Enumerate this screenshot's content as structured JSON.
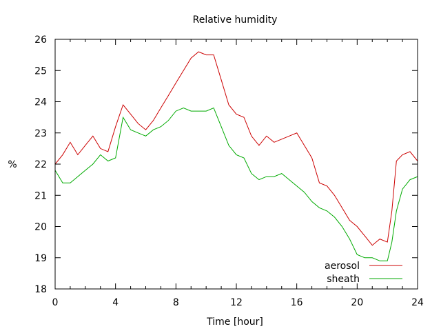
{
  "chart_data": {
    "type": "line",
    "title": "Relative humidity",
    "xlabel": "Time [hour]",
    "ylabel": "%",
    "xlim": [
      0,
      24
    ],
    "ylim": [
      18,
      26
    ],
    "xticks": [
      0,
      4,
      8,
      12,
      16,
      20,
      24
    ],
    "yticks": [
      18,
      19,
      20,
      21,
      22,
      23,
      24,
      25,
      26
    ],
    "grid": false,
    "legend_position": "bottom-right",
    "series": [
      {
        "name": "aerosol",
        "color": "#cc0000",
        "x": [
          0,
          0.5,
          1,
          1.5,
          2,
          2.5,
          3,
          3.5,
          4,
          4.5,
          5,
          5.5,
          6,
          6.5,
          7,
          7.5,
          8,
          8.5,
          9,
          9.5,
          10,
          10.5,
          11,
          11.5,
          12,
          12.5,
          13,
          13.5,
          14,
          14.5,
          15,
          15.5,
          16,
          16.5,
          17,
          17.5,
          18,
          18.5,
          19,
          19.5,
          20,
          20.5,
          21,
          21.5,
          22,
          22.3,
          22.6,
          23,
          23.5,
          24
        ],
        "y": [
          22.0,
          22.3,
          22.7,
          22.3,
          22.6,
          22.9,
          22.5,
          22.4,
          23.2,
          23.9,
          23.6,
          23.3,
          23.1,
          23.4,
          23.8,
          24.2,
          24.6,
          25.0,
          25.4,
          25.6,
          25.5,
          25.5,
          24.7,
          23.9,
          23.6,
          23.5,
          22.9,
          22.6,
          22.9,
          22.7,
          22.8,
          22.9,
          23.0,
          22.6,
          22.2,
          21.4,
          21.3,
          21.0,
          20.6,
          20.2,
          20.0,
          19.7,
          19.4,
          19.6,
          19.5,
          20.5,
          22.1,
          22.3,
          22.4,
          22.1
        ]
      },
      {
        "name": "sheath",
        "color": "#00aa00",
        "x": [
          0,
          0.5,
          1,
          1.5,
          2,
          2.5,
          3,
          3.5,
          4,
          4.5,
          5,
          5.5,
          6,
          6.5,
          7,
          7.5,
          8,
          8.5,
          9,
          9.5,
          10,
          10.5,
          11,
          11.5,
          12,
          12.5,
          13,
          13.5,
          14,
          14.5,
          15,
          15.5,
          16,
          16.5,
          17,
          17.5,
          18,
          18.5,
          19,
          19.5,
          20,
          20.5,
          21,
          21.5,
          22,
          22.3,
          22.6,
          23,
          23.5,
          24
        ],
        "y": [
          21.8,
          21.4,
          21.4,
          21.6,
          21.8,
          22.0,
          22.3,
          22.1,
          22.2,
          23.5,
          23.1,
          23.0,
          22.9,
          23.1,
          23.2,
          23.4,
          23.7,
          23.8,
          23.7,
          23.7,
          23.7,
          23.8,
          23.2,
          22.6,
          22.3,
          22.2,
          21.7,
          21.5,
          21.6,
          21.6,
          21.7,
          21.5,
          21.3,
          21.1,
          20.8,
          20.6,
          20.5,
          20.3,
          20.0,
          19.6,
          19.1,
          19.0,
          19.0,
          18.9,
          18.9,
          19.5,
          20.5,
          21.2,
          21.5,
          21.6
        ]
      }
    ]
  }
}
